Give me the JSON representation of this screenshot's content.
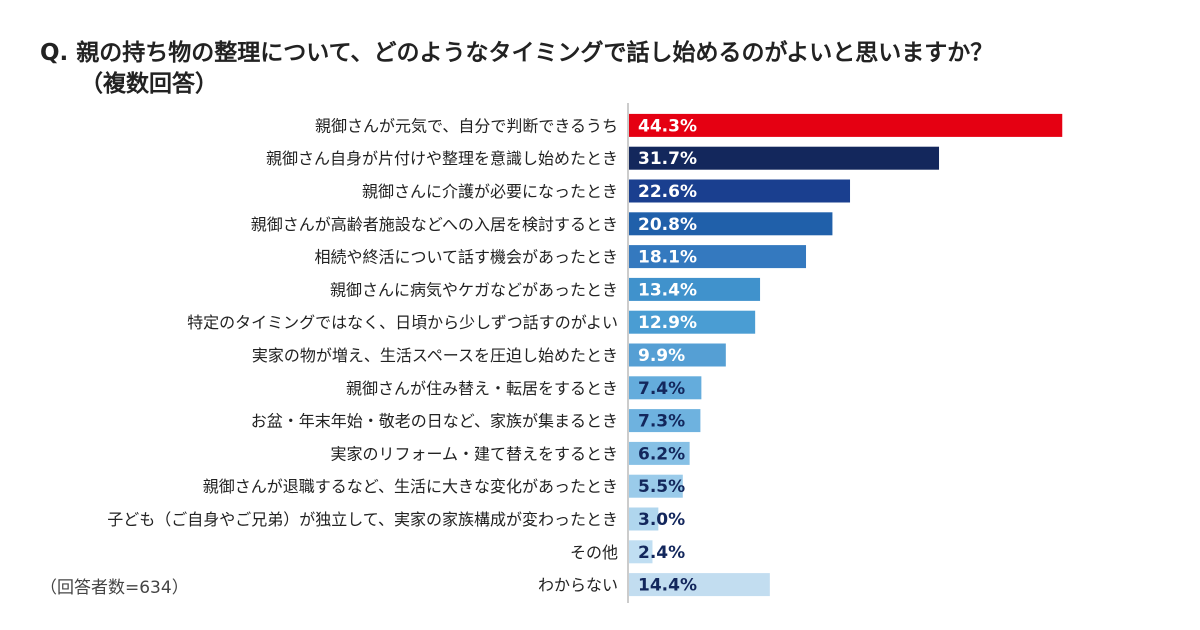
{
  "header": {
    "title_line1": "Q. 親の持ち物の整理について、どのようなタイミングで話し始めるのがよいと思いますか？",
    "title_line2": "（複数回答）"
  },
  "footer": {
    "respondents": "（回答者数=634）"
  },
  "chart_data": {
    "type": "bar",
    "orientation": "horizontal",
    "categories": [
      "親御さんが元気で、自分で判断できるうち",
      "親御さん自身が片付けや整理を意識し始めたとき",
      "親御さんに介護が必要になったとき",
      "親御さんが高齢者施設などへの入居を検討するとき",
      "相続や終活について話す機会があったとき",
      "親御さんに病気やケガなどがあったとき",
      "特定のタイミングではなく、日頃から少しずつ話すのがよい",
      "実家の物が増え、生活スペースを圧迫し始めたとき",
      "親御さんが住み替え・転居をするとき",
      "お盆・年末年始・敬老の日など、家族が集まるとき",
      "実家のリフォーム・建て替えをするとき",
      "親御さんが退職するなど、生活に大きな変化があったとき",
      "子ども（ご自身やご兄弟）が独立して、実家の家族構成が変わったとき",
      "その他",
      "わからない"
    ],
    "values": [
      44.3,
      31.7,
      22.6,
      20.8,
      18.1,
      13.4,
      12.9,
      9.9,
      7.4,
      7.3,
      6.2,
      5.5,
      3.0,
      2.4,
      14.4
    ],
    "value_labels": [
      "44.3%",
      "31.7%",
      "22.6%",
      "20.8%",
      "18.1%",
      "13.4%",
      "12.9%",
      "9.9%",
      "7.4%",
      "7.3%",
      "6.2%",
      "5.5%",
      "3.0%",
      "2.4%",
      "14.4%"
    ],
    "colors": [
      "#e50012",
      "#13275c",
      "#1a3f8f",
      "#2060aa",
      "#3479bf",
      "#4092cc",
      "#4a9dd3",
      "#559fd4",
      "#64acdc",
      "#6eb2df",
      "#86c0e5",
      "#9acbea",
      "#b0d6ee",
      "#c0def2",
      "#c2ddf0"
    ],
    "label_colors": [
      "#ffffff",
      "#ffffff",
      "#ffffff",
      "#ffffff",
      "#ffffff",
      "#ffffff",
      "#ffffff",
      "#ffffff",
      "#13275c",
      "#13275c",
      "#13275c",
      "#13275c",
      "#13275c",
      "#13275c",
      "#13275c"
    ],
    "axis_color": "#bbbbbb",
    "xlim": [
      0,
      100
    ],
    "grid": false,
    "legend": "none"
  }
}
